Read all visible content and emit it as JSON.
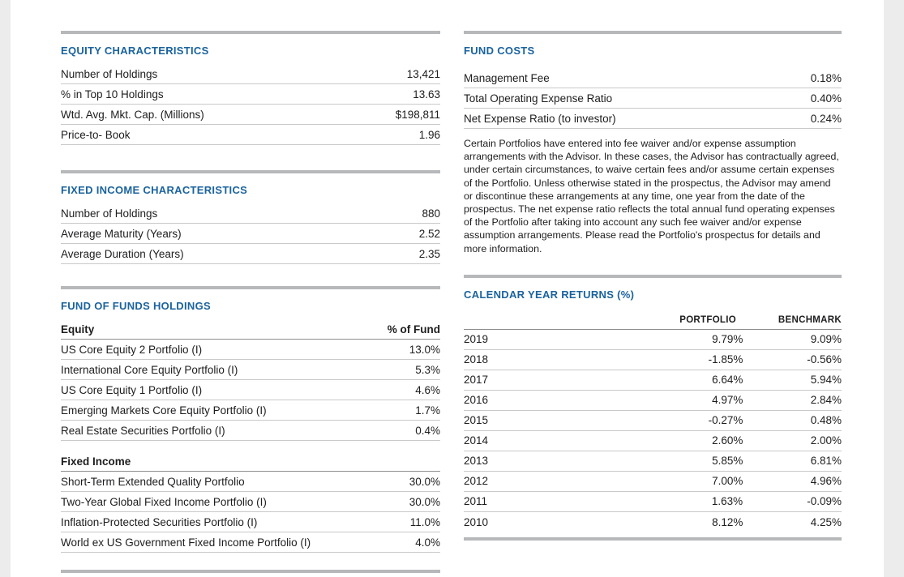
{
  "page": {
    "accent_color": "#1a639e",
    "section_bar_color": "#b7b8ba",
    "row_line_color": "#c9c9c9",
    "header_line_color": "#8e8e8e",
    "margin_strip_color": "#ececec"
  },
  "equity_characteristics": {
    "title": "EQUITY CHARACTERISTICS",
    "rows": [
      {
        "label": "Number of Holdings",
        "value": "13,421"
      },
      {
        "label": "% in Top 10 Holdings",
        "value": "13.63"
      },
      {
        "label": "Wtd. Avg. Mkt. Cap. (Millions)",
        "value": "$198,811"
      },
      {
        "label": "Price-to- Book",
        "value": "1.96"
      }
    ]
  },
  "fixed_income_characteristics": {
    "title": "FIXED INCOME CHARACTERISTICS",
    "rows": [
      {
        "label": "Number of Holdings",
        "value": "880"
      },
      {
        "label": "Average Maturity (Years)",
        "value": "2.52"
      },
      {
        "label": "Average Duration (Years)",
        "value": "2.35"
      }
    ]
  },
  "fund_of_funds": {
    "title": "FUND OF FUNDS HOLDINGS",
    "groups": [
      {
        "header": "Equity",
        "value_header": "% of Fund",
        "rows": [
          {
            "label": "US Core Equity 2 Portfolio (I)",
            "value": "13.0%"
          },
          {
            "label": "International Core Equity Portfolio (I)",
            "value": "5.3%"
          },
          {
            "label": "US Core Equity 1 Portfolio (I)",
            "value": "4.6%"
          },
          {
            "label": "Emerging Markets Core Equity Portfolio (I)",
            "value": "1.7%"
          },
          {
            "label": "Real Estate Securities Portfolio (I)",
            "value": "0.4%"
          }
        ]
      },
      {
        "header": "Fixed Income",
        "value_header": "",
        "rows": [
          {
            "label": "Short-Term Extended Quality Portfolio",
            "value": "30.0%"
          },
          {
            "label": "Two-Year Global Fixed Income Portfolio (I)",
            "value": "30.0%"
          },
          {
            "label": "Inflation-Protected Securities Portfolio (I)",
            "value": "11.0%"
          },
          {
            "label": "World ex US Government Fixed Income Portfolio (I)",
            "value": "4.0%"
          }
        ]
      }
    ]
  },
  "fund_costs": {
    "title": "FUND COSTS",
    "rows": [
      {
        "label": "Management Fee",
        "value": "0.18%"
      },
      {
        "label": "Total Operating Expense Ratio",
        "value": "0.40%"
      },
      {
        "label": "Net Expense Ratio (to investor)",
        "value": "0.24%"
      }
    ],
    "disclaimer": "Certain Portfolios have entered into fee waiver and/or expense assumption arrangements with the Advisor. In these cases, the Advisor has contractually agreed, under certain circumstances, to waive certain fees and/or assume certain expenses of the Portfolio. Unless otherwise stated in the prospectus, the Advisor may amend or discontinue these arrangements at any time, one year from the date of the prospectus. The net expense ratio reflects the total annual fund operating expenses of the Portfolio after taking into account any such fee waiver and/or expense assumption arrangements. Please read the Portfolio's prospectus for details and more information."
  },
  "calendar_returns": {
    "title": "CALENDAR YEAR RETURNS (%)",
    "col_headers": {
      "portfolio": "PORTFOLIO",
      "benchmark": "BENCHMARK"
    },
    "rows": [
      {
        "year": "2019",
        "portfolio": "9.79%",
        "benchmark": "9.09%"
      },
      {
        "year": "2018",
        "portfolio": "-1.85%",
        "benchmark": "-0.56%"
      },
      {
        "year": "2017",
        "portfolio": "6.64%",
        "benchmark": "5.94%"
      },
      {
        "year": "2016",
        "portfolio": "4.97%",
        "benchmark": "2.84%"
      },
      {
        "year": "2015",
        "portfolio": "-0.27%",
        "benchmark": "0.48%"
      },
      {
        "year": "2014",
        "portfolio": "2.60%",
        "benchmark": "2.00%"
      },
      {
        "year": "2013",
        "portfolio": "5.85%",
        "benchmark": "6.81%"
      },
      {
        "year": "2012",
        "portfolio": "7.00%",
        "benchmark": "4.96%"
      },
      {
        "year": "2011",
        "portfolio": "1.63%",
        "benchmark": "-0.09%"
      },
      {
        "year": "2010",
        "portfolio": "8.12%",
        "benchmark": "4.25%"
      }
    ]
  }
}
